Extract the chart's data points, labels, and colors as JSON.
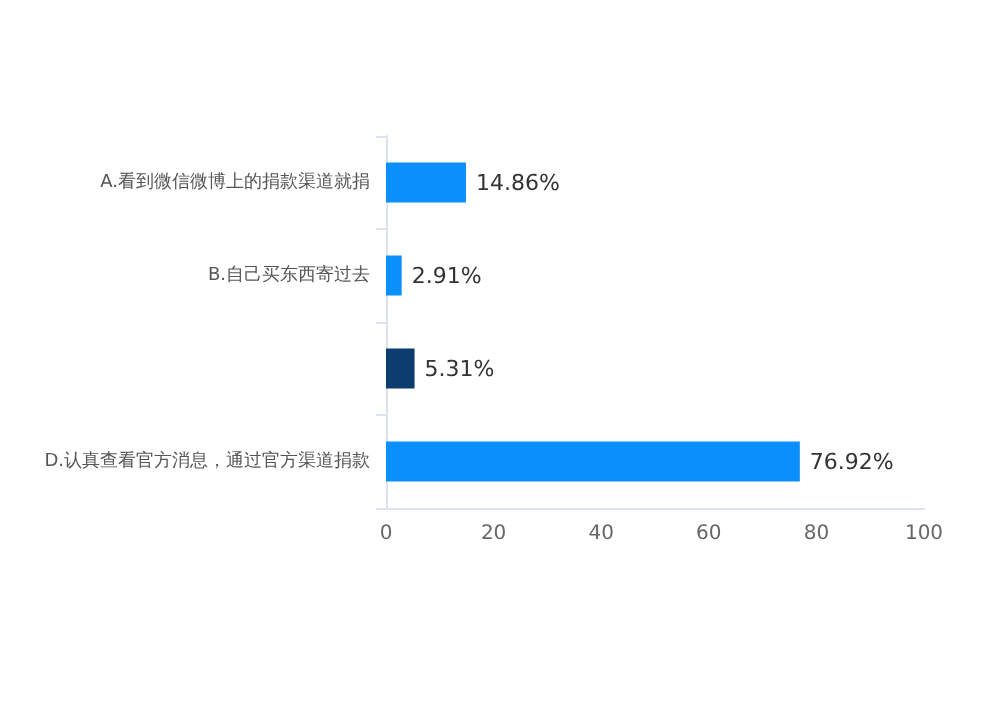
{
  "chart_data": {
    "type": "bar",
    "orientation": "horizontal",
    "categories": [
      "A.看到微信微博上的捐款渠道就捐",
      "B.自己买东西寄过去",
      null,
      "D.认真查看官方消息，通过官方渠道捐款"
    ],
    "values": [
      14.86,
      2.91,
      5.31,
      76.92
    ],
    "value_labels": [
      "14.86%",
      "2.91%",
      "5.31%",
      "76.92%"
    ],
    "colors": [
      "#0a8ffc",
      "#0a8ffc",
      "#0d3c6e",
      "#0a8ffc"
    ],
    "xlim": [
      0,
      100
    ],
    "xticks": [
      0,
      20,
      40,
      60,
      80,
      100
    ],
    "grid": false
  }
}
